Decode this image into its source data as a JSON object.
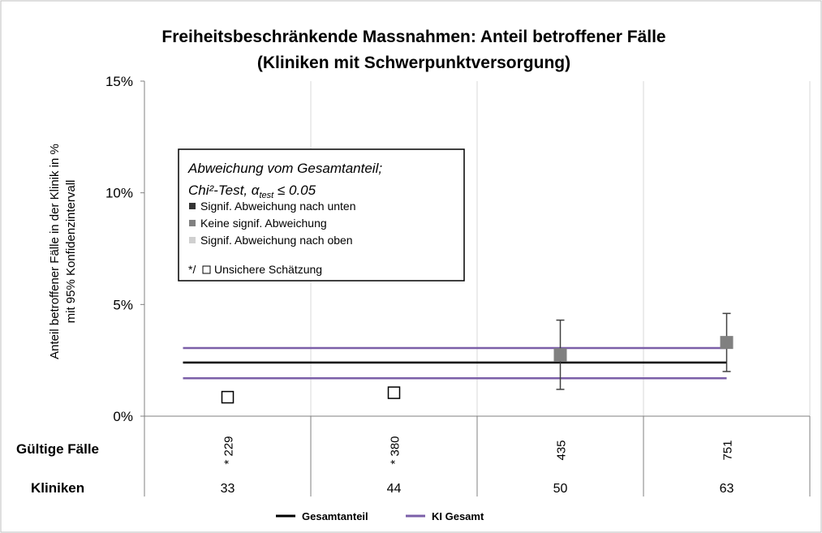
{
  "chart_data": {
    "type": "scatter",
    "title_line1": "Freiheitsbeschränkende Massnahmen: Anteil betroffener Fälle",
    "title_line2": "(Kliniken mit Schwerpunktversorgung)",
    "ylabel_line1": "Anteil betroffener Fälle in der Klinik in %",
    "ylabel_line2": "mit 95% Konfidenzintervall",
    "ylim": [
      0,
      15
    ],
    "yticks": [
      0,
      5,
      10,
      15
    ],
    "ytick_labels": [
      "0%",
      "5%",
      "10%",
      "15%"
    ],
    "grid": "vertical",
    "row_labels": {
      "cases": "Gültige Fälle",
      "clinics": "Kliniken"
    },
    "points": [
      {
        "cases": "* 229",
        "clinics": "33",
        "value": 0.85,
        "category": "Unsichere Schätzung"
      },
      {
        "cases": "* 380",
        "clinics": "44",
        "value": 1.05,
        "category": "Unsichere Schätzung"
      },
      {
        "cases": "435",
        "clinics": "50",
        "value": 2.75,
        "ci_low": 1.2,
        "ci_high": 4.3,
        "category": "Keine signif. Abweichung"
      },
      {
        "cases": "751",
        "clinics": "63",
        "value": 3.3,
        "ci_low": 2.0,
        "ci_high": 4.6,
        "category": "Keine signif. Abweichung"
      }
    ],
    "reference_lines": {
      "total": 2.4,
      "ci_low": 1.7,
      "ci_high": 3.05
    },
    "colors": {
      "total": "#000000",
      "ci": "#7b5fa8",
      "signif_lower": "#333333",
      "no_signif": "#808080",
      "signif_upper": "#d0d0d0",
      "uncertain": "#ffffff",
      "grid": "#d9d9d9"
    },
    "box_legend": {
      "title_line1": "Abweichung vom Gesamtanteil;",
      "title_line2_prefix": "Chi²-Test, ",
      "alpha": "α",
      "alpha_sub": "test",
      "title_line2_suffix": " ≤ 0.05",
      "items": [
        {
          "label": "Signif. Abweichung nach unten",
          "color_key": "signif_lower"
        },
        {
          "label": "Keine signif. Abweichung",
          "color_key": "no_signif"
        },
        {
          "label": "Signif. Abweichung nach oben",
          "color_key": "signif_upper"
        }
      ],
      "uncertain_prefix": "*/",
      "uncertain_label": "Unsichere Schätzung"
    },
    "bottom_legend": [
      {
        "label": "Gesamtanteil",
        "color_key": "total"
      },
      {
        "label": "KI Gesamt",
        "color_key": "ci"
      }
    ]
  }
}
